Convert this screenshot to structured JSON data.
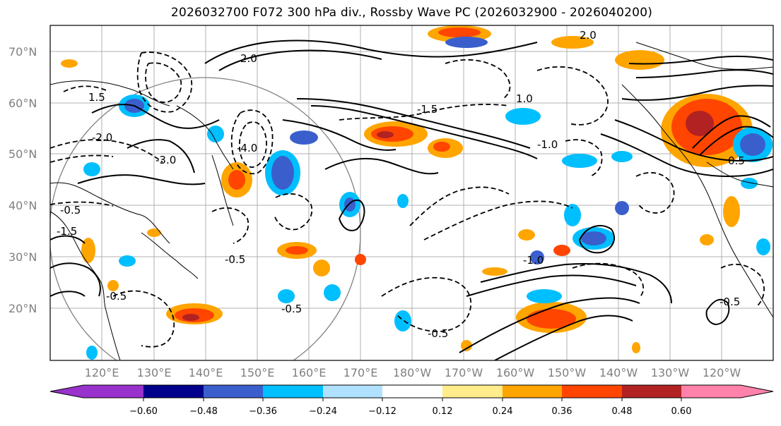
{
  "title": "2026032700 F072 300 hPa div., Rossby Wave PC (2026032900 - 2026040200)",
  "lat_labels": [
    "70°N",
    "60°N",
    "50°N",
    "40°N",
    "30°N",
    "20°N"
  ],
  "lon_labels": [
    "120°E",
    "130°E",
    "140°E",
    "150°E",
    "160°E",
    "170°E",
    "180°W",
    "170°W",
    "160°W",
    "150°W",
    "140°W",
    "130°W",
    "120°W"
  ],
  "colorbar": {
    "ticks": [
      "−0.60",
      "−0.48",
      "−0.36",
      "−0.24",
      "−0.12",
      "0.12",
      "0.24",
      "0.36",
      "0.48",
      "0.60"
    ],
    "colors": [
      "#9932cc",
      "#00008b",
      "#3a5fcd",
      "#00bfff",
      "#b0e2ff",
      "#ffffff",
      "#ffec8b",
      "#ffa500",
      "#ff4500",
      "#b22222",
      "#ff82ab"
    ]
  },
  "contour_labels": [
    "-0.5",
    "-1.0",
    "-1.5",
    "-2.0",
    "-4.0",
    "-3.0",
    "1.5",
    "1.0",
    "2.0",
    "0.5",
    "-0.5",
    "-0.5",
    "-0.5",
    "-0.5",
    "-0.5",
    "-1.5",
    "-1.0",
    "2.0"
  ]
}
